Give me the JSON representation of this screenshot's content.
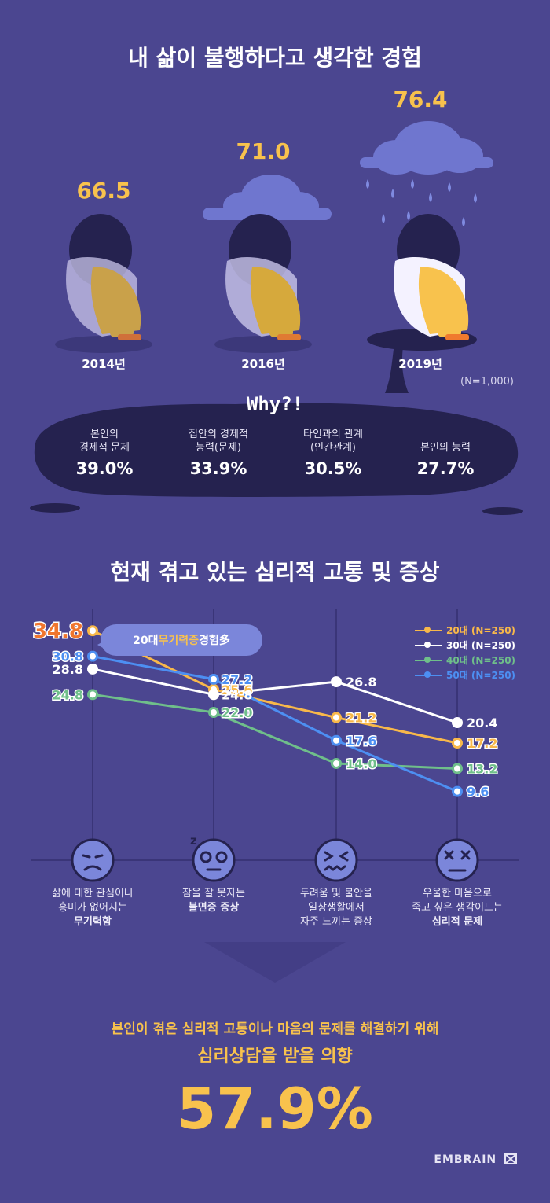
{
  "section1": {
    "title": "내 삶이 불행하다고 생각한 경험",
    "years": [
      {
        "year": "2014년",
        "score": "66.5"
      },
      {
        "year": "2016년",
        "score": "71.0"
      },
      {
        "year": "2019년",
        "score": "76.4"
      }
    ],
    "sample": "(N=1,000)",
    "why": "Why?!",
    "reasons": [
      {
        "label": "본인의\n경제적 문제",
        "value": "39.0%"
      },
      {
        "label": "집안의 경제적\n능력(문제)",
        "value": "33.9%"
      },
      {
        "label": "타인과의 관계\n(인간관계)",
        "value": "30.5%"
      },
      {
        "label": "본인의 능력",
        "value": "27.7%"
      }
    ]
  },
  "section2": {
    "title": "현재 겪고 있는 심리적 고통 및 증상",
    "bubble": {
      "pre": "20대 ",
      "highlight": "무기력증",
      "post": " 경험多"
    },
    "categories": [
      {
        "line1": "삶에 대한 관심이나",
        "line2": "흥미가 없어지는",
        "line3": "무기력함"
      },
      {
        "line1": "잠을 잘 못자는",
        "line2": "불면증 증상",
        "line3": ""
      },
      {
        "line1": "두려움 및 불안을",
        "line2": "일상생활에서",
        "line3": "자주 느끼는 증상"
      },
      {
        "line1": "우울한 마음으로",
        "line2": "죽고 싶은 생각이드는",
        "line3": "심리적 문제"
      }
    ]
  },
  "chart_data": {
    "type": "line",
    "categories": [
      "삶에 대한 관심이나 흥미가 없어지는 무기력함",
      "잠을 잘 못자는 불면증 증상",
      "두려움 및 불안을 일상생활에서 자주 느끼는 증상",
      "우울한 마음으로 죽고 싶은 생각이드는 심리적 문제"
    ],
    "series": [
      {
        "name": "20대 (N=250)",
        "color": "#f8b84a",
        "values": [
          34.8,
          25.6,
          21.2,
          17.2
        ],
        "labels": [
          "34.8",
          "25.6",
          "21.2",
          "17.2"
        ]
      },
      {
        "name": "30대 (N=250)",
        "color": "#ffffff",
        "values": [
          28.8,
          24.8,
          26.8,
          20.4
        ],
        "labels": [
          "28.8",
          "24.8",
          "26.8",
          "20.4"
        ]
      },
      {
        "name": "40대 (N=250)",
        "color": "#6fbf8a",
        "values": [
          24.8,
          22.0,
          14.0,
          13.2
        ],
        "labels": [
          "24.8",
          "22.0",
          "14.0",
          "13.2"
        ]
      },
      {
        "name": "50대 (N=250)",
        "color": "#4d8ff2",
        "values": [
          30.8,
          27.2,
          17.6,
          9.6
        ],
        "labels": [
          "30.8",
          "27.2",
          "17.6",
          "9.6"
        ]
      }
    ],
    "highlight_color": "#f0762e",
    "ylim": [
      5,
      40
    ]
  },
  "section3": {
    "line1": "본인이 겪은 심리적 고통이나 마음의 문제를 해결하기 위해",
    "line2": "심리상담을 받을 의향",
    "value": "57.9%"
  },
  "brand": "EMBRAIN",
  "colors": {
    "background": "#4b4690",
    "accent": "#f8c24d",
    "dark": "#25224f"
  }
}
